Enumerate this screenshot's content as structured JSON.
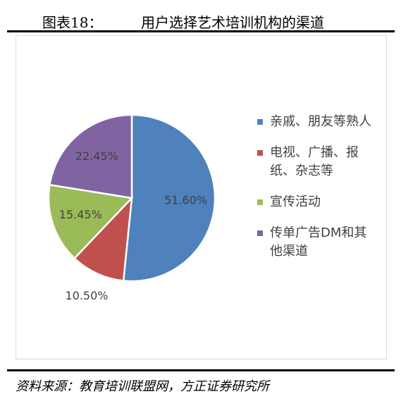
{
  "header_label": "图表18：",
  "source": "资料来源：教育培训联盟网，方正证券研究所",
  "chart_data": {
    "type": "pie",
    "title": "用户选择艺术培训机构的渠道",
    "categories": [
      "亲戚、朋友等熟人",
      "电视、广播、报纸、杂志等",
      "宣传活动",
      "传单广告DM和其他渠道"
    ],
    "values": [
      51.6,
      10.5,
      15.45,
      22.45
    ],
    "value_labels": [
      "51.60%",
      "10.50%",
      "15.45%",
      "22.45%"
    ],
    "colors": [
      "#4f81bd",
      "#c0504d",
      "#9bbb59",
      "#8064a2"
    ],
    "legend": "right"
  }
}
